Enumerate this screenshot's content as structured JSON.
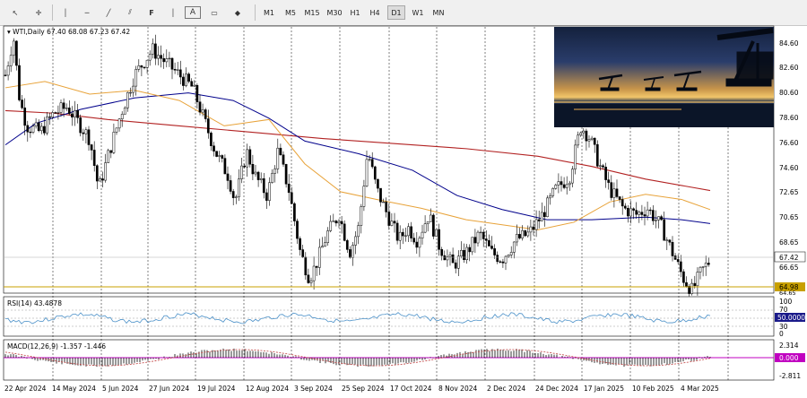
{
  "toolbar": {
    "tools": [
      {
        "name": "cursor-icon",
        "glyph": "↖"
      },
      {
        "name": "crosshair-icon",
        "glyph": "✛"
      },
      {
        "name": "vertical-line-icon",
        "glyph": "│"
      },
      {
        "name": "horizontal-line-icon",
        "glyph": "─"
      },
      {
        "name": "trendline-icon",
        "glyph": "╱"
      },
      {
        "name": "channel-icon",
        "glyph": "⫽"
      },
      {
        "name": "fibonacci-icon",
        "glyph": "F"
      },
      {
        "name": "text-icon",
        "glyph": "A"
      },
      {
        "name": "label-icon",
        "glyph": "▭"
      },
      {
        "name": "shapes-icon",
        "glyph": "◆"
      }
    ],
    "timeframes": [
      "M1",
      "M5",
      "M15",
      "M30",
      "H1",
      "H4",
      "D1",
      "W1",
      "MN"
    ],
    "active_timeframe": "D1"
  },
  "main_header": {
    "symbol": "WTI,Daily",
    "ohlc": "67.40 68.08 67.23 67.42"
  },
  "price_axis": {
    "labels": [
      "84.60",
      "82.60",
      "80.60",
      "78.60",
      "76.60",
      "74.60",
      "72.65",
      "70.65",
      "68.65",
      "66.65"
    ],
    "current_price": "67.42",
    "support_price": "64.98",
    "bottom_label": "64.65"
  },
  "rsi": {
    "title": "RSI(14) 43.4878",
    "axis_labels": [
      "100",
      "70",
      "30",
      "0"
    ],
    "level_label": "50.0000"
  },
  "macd": {
    "title": "MACD(12,26,9) -1.357 -1.446",
    "axis_labels": [
      "2.314",
      "-2.811"
    ],
    "zero_label": "0.000"
  },
  "dates": [
    "22 Apr 2024",
    "14 May 2024",
    "5 Jun 2024",
    "27 Jun 2024",
    "19 Jul 2024",
    "12 Aug 2024",
    "3 Sep 2024",
    "25 Sep 2024",
    "17 Oct 2024",
    "8 Nov 2024",
    "2 Dec 2024",
    "24 Dec 2024",
    "17 Jan 2025",
    "10 Feb 2025",
    "4 Mar 2025"
  ],
  "colors": {
    "ma_red": "#b22222",
    "ma_blue": "#00008b",
    "ma_orange": "#e8a33a",
    "rsi_line": "#4a90c8",
    "macd_signal": "#c04040",
    "support_line": "#c8a000",
    "macd_zero": "#c000c0"
  }
}
